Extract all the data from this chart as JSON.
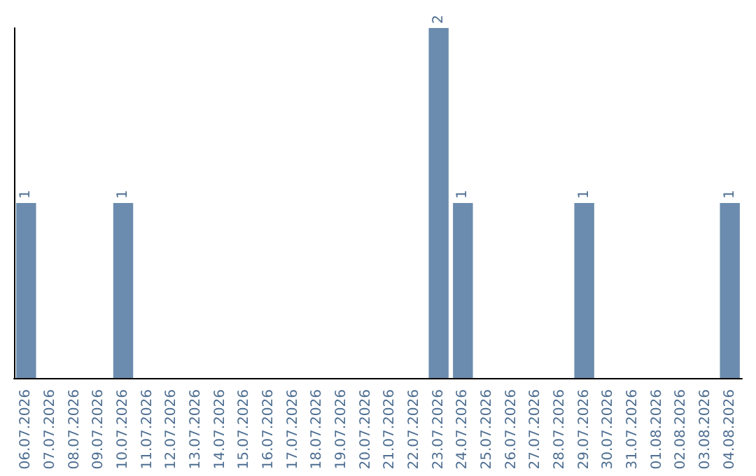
{
  "chart_data": {
    "type": "bar",
    "categories": [
      "06.07.2026",
      "07.07.2026",
      "08.07.2026",
      "09.07.2026",
      "10.07.2026",
      "11.07.2026",
      "12.07.2026",
      "13.07.2026",
      "14.07.2026",
      "15.07.2026",
      "16.07.2026",
      "17.07.2026",
      "18.07.2026",
      "19.07.2026",
      "20.07.2026",
      "21.07.2026",
      "22.07.2026",
      "23.07.2026",
      "24.07.2026",
      "25.07.2026",
      "26.07.2026",
      "27.07.2026",
      "28.07.2026",
      "29.07.2026",
      "30.07.2026",
      "31.07.2026",
      "01.08.2026",
      "02.08.2026",
      "03.08.2026",
      "04.08.2026"
    ],
    "values": [
      1,
      0,
      0,
      0,
      1,
      0,
      0,
      0,
      0,
      0,
      0,
      0,
      0,
      0,
      0,
      0,
      0,
      2,
      1,
      0,
      0,
      0,
      0,
      1,
      0,
      0,
      0,
      0,
      0,
      1
    ],
    "value_labels": [
      "1",
      null,
      null,
      null,
      "1",
      null,
      null,
      null,
      null,
      null,
      null,
      null,
      null,
      null,
      null,
      null,
      null,
      "2",
      "1",
      null,
      null,
      null,
      null,
      "1",
      null,
      null,
      null,
      null,
      null,
      "1"
    ],
    "color": "#6b8cae",
    "grid": false,
    "tick_labels": "x"
  }
}
